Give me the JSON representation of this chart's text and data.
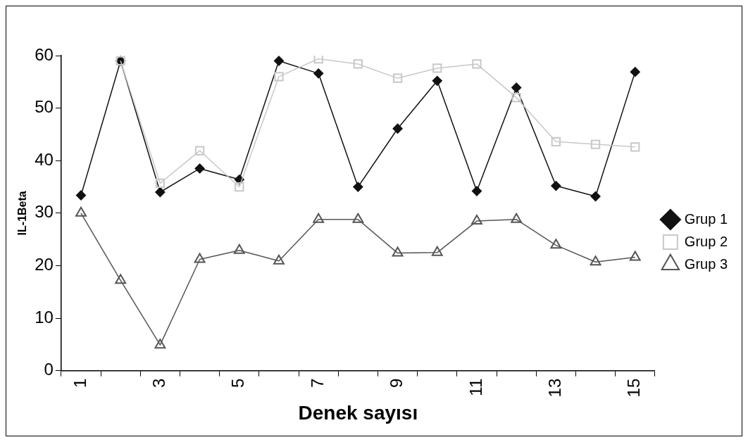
{
  "chart_data": {
    "type": "line",
    "xlabel": "Denek sayısı",
    "ylabel": "IL-1Beta",
    "categories": [
      "1",
      null,
      "3",
      null,
      "5",
      null,
      "7",
      null,
      "9",
      null,
      "11",
      null,
      "13",
      null,
      "15"
    ],
    "ylim": [
      0,
      60
    ],
    "yticks": [
      0,
      10,
      20,
      30,
      40,
      50,
      60
    ],
    "grid": false,
    "legend": "right",
    "line_style": "solid",
    "series": [
      {
        "name": "Grup 1",
        "color": "#111111",
        "marker": "diamond",
        "values": [
          33.4,
          59,
          34,
          38.5,
          36.4,
          59,
          56.6,
          35,
          46.1,
          55.2,
          34.2,
          53.9,
          35.2,
          33.2,
          56.9
        ]
      },
      {
        "name": "Grup 2",
        "color": "#c8c8c8",
        "marker": "square",
        "values": [
          null,
          59,
          35.7,
          41.9,
          35,
          56,
          59.4,
          58.4,
          55.7,
          57.6,
          58.4,
          52,
          43.6,
          43.1,
          42.6
        ]
      },
      {
        "name": "Grup 3",
        "color": "#555555",
        "marker": "triangle",
        "values": [
          30,
          17.2,
          4.9,
          21.2,
          22.9,
          20.9,
          28.8,
          28.8,
          22.4,
          22.5,
          28.5,
          28.8,
          23.9,
          20.7,
          21.6
        ]
      }
    ]
  }
}
